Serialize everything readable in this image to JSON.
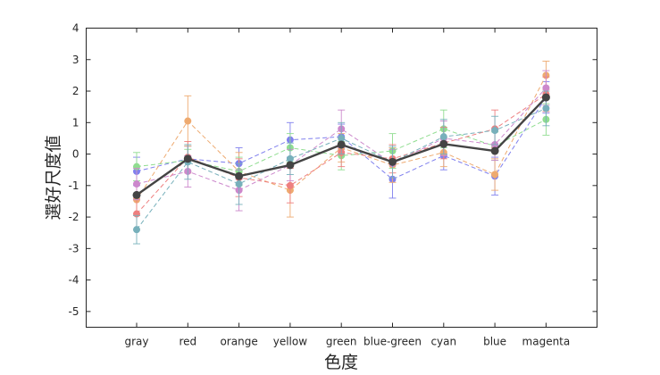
{
  "chart_data": {
    "type": "line",
    "title": "",
    "xlabel": "色度",
    "ylabel": "選好尺度値",
    "ylim": [
      -5.5,
      4
    ],
    "yticks": [
      -5,
      -4,
      -3,
      -2,
      -1,
      0,
      1,
      2,
      3,
      4
    ],
    "categories": [
      "gray",
      "red",
      "orange",
      "yellow",
      "green",
      "blue-green",
      "cyan",
      "blue",
      "magenta"
    ],
    "grid": false,
    "legend": "none",
    "series": [
      {
        "color": "#8080ee",
        "dashed": true,
        "values": [
          -0.55,
          -0.15,
          -0.3,
          0.45,
          0.55,
          -0.8,
          -0.05,
          -0.7,
          1.8
        ],
        "err": [
          0.45,
          0.4,
          0.5,
          0.55,
          0.4,
          0.6,
          0.45,
          0.6,
          0.5
        ]
      },
      {
        "color": "#eeaa70",
        "dashed": true,
        "values": [
          -1.45,
          1.05,
          -0.55,
          -1.15,
          0.2,
          -0.35,
          0.05,
          -0.65,
          2.5
        ],
        "err": [
          0.5,
          0.8,
          0.6,
          0.85,
          0.45,
          0.55,
          0.45,
          0.5,
          0.45
        ]
      },
      {
        "color": "#90dd90",
        "dashed": true,
        "values": [
          -0.4,
          -0.2,
          -0.55,
          0.2,
          -0.05,
          0.1,
          0.8,
          0.25,
          1.1
        ],
        "err": [
          0.45,
          0.35,
          0.45,
          0.45,
          0.45,
          0.55,
          0.6,
          0.45,
          0.5
        ]
      },
      {
        "color": "#ee7f7f",
        "dashed": true,
        "values": [
          -1.9,
          -0.1,
          -0.75,
          -1.0,
          0.05,
          -0.15,
          0.35,
          0.8,
          1.9
        ],
        "err": [
          0.5,
          0.5,
          0.6,
          0.55,
          0.45,
          0.45,
          0.5,
          0.6,
          0.55
        ]
      },
      {
        "color": "#cc88cc",
        "dashed": true,
        "values": [
          -0.95,
          -0.55,
          -1.15,
          -0.35,
          0.8,
          -0.3,
          0.5,
          0.3,
          2.1
        ],
        "err": [
          0.5,
          0.5,
          0.65,
          0.5,
          0.6,
          0.45,
          0.55,
          0.5,
          0.55
        ]
      },
      {
        "color": "#77b0bb",
        "dashed": true,
        "values": [
          -2.4,
          -0.25,
          -0.95,
          -0.15,
          0.5,
          -0.25,
          0.55,
          0.75,
          1.45
        ],
        "err": [
          0.45,
          0.55,
          0.65,
          0.5,
          0.5,
          0.5,
          0.55,
          0.45,
          0.55
        ]
      },
      {
        "color": "#444444",
        "dashed": false,
        "values": [
          -1.3,
          -0.15,
          -0.7,
          -0.35,
          0.3,
          -0.25,
          0.32,
          0.1,
          1.8
        ],
        "err": [
          null,
          null,
          null,
          null,
          null,
          null,
          null,
          null,
          null
        ]
      }
    ]
  }
}
